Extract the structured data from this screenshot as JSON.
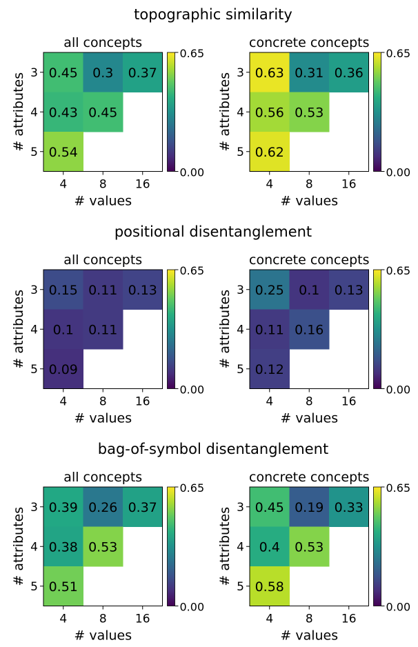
{
  "figure": {
    "colorbar": {
      "min_label": "0.00",
      "max_label": "0.65",
      "vmin": 0.0,
      "vmax": 0.65,
      "colormap": "viridis"
    }
  },
  "sections": [
    {
      "title": "topographic similarity"
    },
    {
      "title": "positional disentanglement"
    },
    {
      "title": "bag-of-symbol disentanglement"
    }
  ],
  "chart_data": [
    {
      "type": "heatmap",
      "title": "all concepts",
      "section": "topographic similarity",
      "xlabel": "# values",
      "ylabel": "# attributes",
      "x": [
        "4",
        "8",
        "16"
      ],
      "y": [
        "3",
        "4",
        "5"
      ],
      "values": [
        [
          0.45,
          0.3,
          0.37
        ],
        [
          0.43,
          0.45,
          null
        ],
        [
          0.54,
          null,
          null
        ]
      ],
      "labels": [
        [
          "0.45",
          "0.3",
          "0.37"
        ],
        [
          "0.43",
          "0.45",
          ""
        ],
        [
          "0.54",
          "",
          ""
        ]
      ],
      "vmin": 0.0,
      "vmax": 0.65
    },
    {
      "type": "heatmap",
      "title": "concrete concepts",
      "section": "topographic similarity",
      "xlabel": "# values",
      "ylabel": "# attributes",
      "x": [
        "4",
        "8",
        "16"
      ],
      "y": [
        "3",
        "4",
        "5"
      ],
      "values": [
        [
          0.63,
          0.31,
          0.36
        ],
        [
          0.56,
          0.53,
          null
        ],
        [
          0.62,
          null,
          null
        ]
      ],
      "labels": [
        [
          "0.63",
          "0.31",
          "0.36"
        ],
        [
          "0.56",
          "0.53",
          ""
        ],
        [
          "0.62",
          "",
          ""
        ]
      ],
      "vmin": 0.0,
      "vmax": 0.65
    },
    {
      "type": "heatmap",
      "title": "all concepts",
      "section": "positional disentanglement",
      "xlabel": "# values",
      "ylabel": "# attributes",
      "x": [
        "4",
        "8",
        "16"
      ],
      "y": [
        "3",
        "4",
        "5"
      ],
      "values": [
        [
          0.15,
          0.11,
          0.13
        ],
        [
          0.1,
          0.11,
          null
        ],
        [
          0.09,
          null,
          null
        ]
      ],
      "labels": [
        [
          "0.15",
          "0.11",
          "0.13"
        ],
        [
          "0.1",
          "0.11",
          ""
        ],
        [
          "0.09",
          "",
          ""
        ]
      ],
      "vmin": 0.0,
      "vmax": 0.65
    },
    {
      "type": "heatmap",
      "title": "concrete concepts",
      "section": "positional disentanglement",
      "xlabel": "# values",
      "ylabel": "# attributes",
      "x": [
        "4",
        "8",
        "16"
      ],
      "y": [
        "3",
        "4",
        "5"
      ],
      "values": [
        [
          0.25,
          0.1,
          0.13
        ],
        [
          0.11,
          0.16,
          null
        ],
        [
          0.12,
          null,
          null
        ]
      ],
      "labels": [
        [
          "0.25",
          "0.1",
          "0.13"
        ],
        [
          "0.11",
          "0.16",
          ""
        ],
        [
          "0.12",
          "",
          ""
        ]
      ],
      "vmin": 0.0,
      "vmax": 0.65
    },
    {
      "type": "heatmap",
      "title": "all concepts",
      "section": "bag-of-symbol disentanglement",
      "xlabel": "# values",
      "ylabel": "# attributes",
      "x": [
        "4",
        "8",
        "16"
      ],
      "y": [
        "3",
        "4",
        "5"
      ],
      "values": [
        [
          0.39,
          0.26,
          0.37
        ],
        [
          0.38,
          0.53,
          null
        ],
        [
          0.51,
          null,
          null
        ]
      ],
      "labels": [
        [
          "0.39",
          "0.26",
          "0.37"
        ],
        [
          "0.38",
          "0.53",
          ""
        ],
        [
          "0.51",
          "",
          ""
        ]
      ],
      "vmin": 0.0,
      "vmax": 0.65
    },
    {
      "type": "heatmap",
      "title": "concrete concepts",
      "section": "bag-of-symbol disentanglement",
      "xlabel": "# values",
      "ylabel": "# attributes",
      "x": [
        "4",
        "8",
        "16"
      ],
      "y": [
        "3",
        "4",
        "5"
      ],
      "values": [
        [
          0.45,
          0.19,
          0.33
        ],
        [
          0.4,
          0.53,
          null
        ],
        [
          0.58,
          null,
          null
        ]
      ],
      "labels": [
        [
          "0.45",
          "0.19",
          "0.33"
        ],
        [
          "0.4",
          "0.53",
          ""
        ],
        [
          "0.58",
          "",
          ""
        ]
      ],
      "vmin": 0.0,
      "vmax": 0.65
    }
  ]
}
